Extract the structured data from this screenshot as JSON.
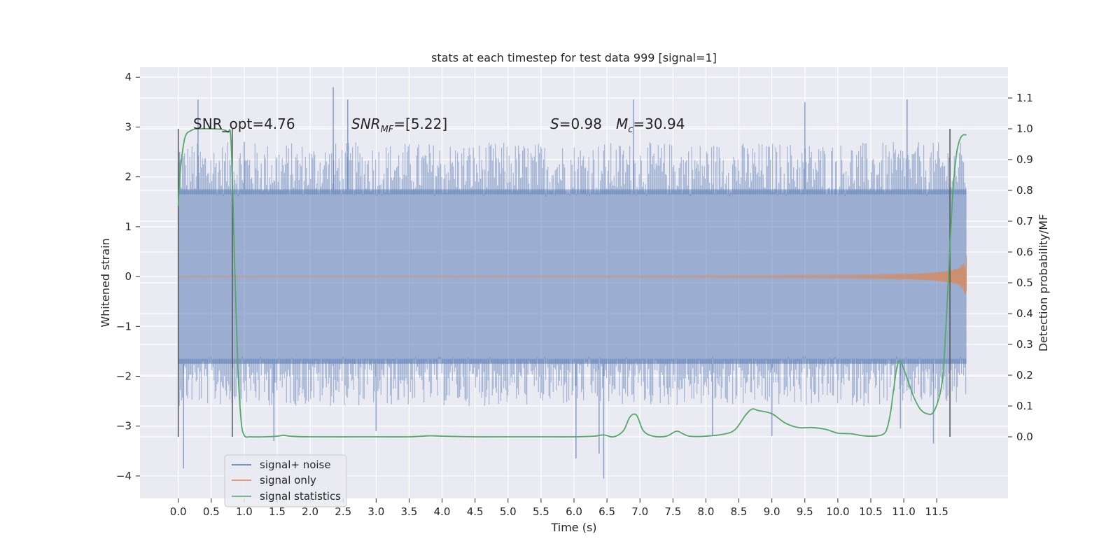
{
  "chart_data": {
    "type": "line",
    "title": "stats at each timestep for test data 999 [signal=1]",
    "xlabel": "Time (s)",
    "ylabel_left": "Whitened strain",
    "ylabel_right": "Detection probability/MF",
    "xlim": [
      -0.58,
      12.58
    ],
    "ylim_left": [
      -4.45,
      4.2
    ],
    "ylim_right": [
      -0.2,
      1.2
    ],
    "x_ticks": [
      "0.0",
      "0.5",
      "1.0",
      "1.5",
      "2.0",
      "2.5",
      "3.0",
      "3.5",
      "4.0",
      "4.5",
      "5.0",
      "5.5",
      "6.0",
      "6.5",
      "7.0",
      "7.5",
      "8.0",
      "8.5",
      "9.0",
      "9.5",
      "10.0",
      "10.5",
      "11.0",
      "11.5"
    ],
    "y_ticks_left": [
      "4",
      "3",
      "2",
      "1",
      "0",
      "−1",
      "−2",
      "−3",
      "−4"
    ],
    "y_ticks_right": [
      "1.1",
      "1.0",
      "0.9",
      "0.8",
      "0.7",
      "0.6",
      "0.5",
      "0.4",
      "0.3",
      "0.2",
      "0.1",
      "0.0"
    ],
    "grid": true,
    "legend_position": "lower-left",
    "annotations": {
      "snr_opt": "SNR_opt=4.76",
      "snr_mf_base": "SNR",
      "snr_mf_sub": "MF",
      "snr_mf_rest": "=[5.22]",
      "s_var": "S",
      "s_rest": "=0.98",
      "mc_var": "M",
      "mc_sub": "c",
      "mc_rest": "=30.94"
    },
    "vertical_markers_x": [
      0.0,
      0.82,
      11.7
    ],
    "series": [
      {
        "name": "signal+ noise",
        "axis": "left",
        "color": "#4c72b0",
        "x_range": [
          0.0,
          11.95
        ],
        "envelope_upper": 1.75,
        "envelope_lower": -1.75,
        "peaks": [
          [
            0.02,
            2.5
          ],
          [
            0.3,
            3.55
          ],
          [
            1.0,
            2.7
          ],
          [
            2.35,
            3.8
          ],
          [
            2.57,
            3.55
          ],
          [
            6.9,
            3.55
          ],
          [
            9.5,
            3.5
          ],
          [
            11.05,
            3.55
          ],
          [
            0.08,
            -3.85
          ],
          [
            1.45,
            -3.3
          ],
          [
            3.0,
            -3.1
          ],
          [
            6.03,
            -3.65
          ],
          [
            6.45,
            -4.05
          ],
          [
            6.38,
            -3.55
          ],
          [
            8.1,
            -3.2
          ],
          [
            9.0,
            -3.2
          ],
          [
            10.95,
            -3.05
          ],
          [
            11.45,
            -3.35
          ]
        ]
      },
      {
        "name": "signal only",
        "axis": "left",
        "color": "#dd8452",
        "x_range": [
          0.0,
          11.95
        ],
        "max_amplitude": 0.55
      },
      {
        "name": "signal statistics",
        "axis": "right",
        "color": "#55a868",
        "x": [
          0.0,
          0.03,
          0.1,
          0.2,
          0.3,
          0.5,
          0.65,
          0.75,
          0.8,
          0.85,
          0.9,
          0.95,
          1.0,
          1.1,
          1.3,
          1.5,
          1.6,
          1.7,
          2.0,
          3.0,
          3.5,
          3.8,
          4.0,
          4.5,
          5.0,
          5.5,
          6.0,
          6.3,
          6.45,
          6.6,
          6.75,
          6.85,
          6.95,
          7.05,
          7.2,
          7.4,
          7.55,
          7.65,
          7.75,
          8.0,
          8.3,
          8.45,
          8.6,
          8.7,
          8.8,
          9.0,
          9.2,
          9.4,
          9.6,
          9.8,
          10.0,
          10.2,
          10.4,
          10.6,
          10.7,
          10.75,
          10.8,
          10.85,
          10.9,
          10.95,
          11.05,
          11.15,
          11.25,
          11.35,
          11.45,
          11.55,
          11.6,
          11.65,
          11.7,
          11.75,
          11.8,
          11.85,
          11.9,
          11.95
        ],
        "y": [
          0.75,
          0.86,
          0.97,
          0.995,
          1.0,
          1.0,
          0.998,
          0.99,
          0.96,
          0.6,
          0.25,
          0.06,
          0.005,
          0.0,
          0.0,
          0.002,
          0.005,
          0.002,
          0.0,
          0.0,
          0.0,
          0.003,
          0.002,
          0.0,
          0.0,
          0.0,
          0.0,
          0.002,
          0.006,
          0.0,
          0.02,
          0.065,
          0.07,
          0.02,
          0.002,
          0.002,
          0.018,
          0.01,
          0.002,
          0.002,
          0.01,
          0.025,
          0.07,
          0.09,
          0.085,
          0.075,
          0.045,
          0.03,
          0.03,
          0.025,
          0.012,
          0.01,
          0.003,
          0.003,
          0.01,
          0.03,
          0.08,
          0.16,
          0.23,
          0.245,
          0.19,
          0.13,
          0.09,
          0.075,
          0.08,
          0.14,
          0.22,
          0.4,
          0.62,
          0.81,
          0.92,
          0.965,
          0.98,
          0.98
        ]
      }
    ]
  }
}
